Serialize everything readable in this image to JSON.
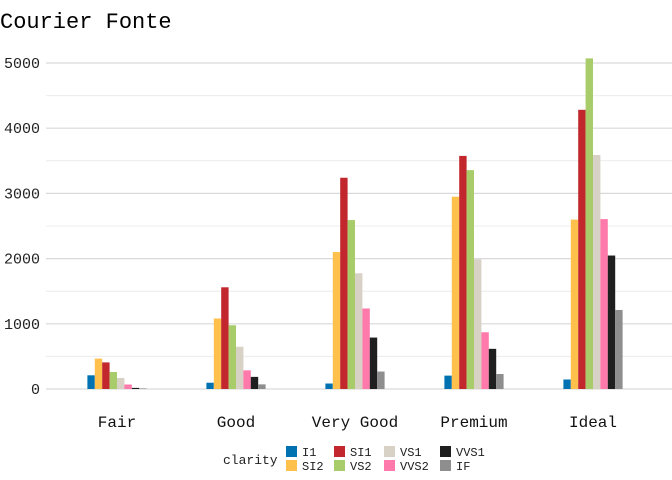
{
  "chart_data": {
    "type": "bar",
    "title": "Courier Fonte",
    "xlabel": "",
    "ylabel": "",
    "ylim": [
      0,
      5100
    ],
    "yticks": [
      0,
      1000,
      2000,
      3000,
      4000,
      5000
    ],
    "ytick_labels": [
      "0",
      "1000",
      "2000",
      "3000",
      "4000",
      "5000"
    ],
    "grid": true,
    "legend_placement": "bottom",
    "legend_title": "clarity",
    "categories": [
      "Fair",
      "Good",
      "Very Good",
      "Premium",
      "Ideal"
    ],
    "series": [
      {
        "name": "I1",
        "color": "#0072B2",
        "values": [
          210,
          96,
          84,
          205,
          146
        ]
      },
      {
        "name": "SI2",
        "color": "#FFC04C",
        "values": [
          466,
          1081,
          2100,
          2949,
          2598
        ]
      },
      {
        "name": "SI1",
        "color": "#C1272D",
        "values": [
          408,
          1560,
          3240,
          3575,
          4282
        ]
      },
      {
        "name": "VS2",
        "color": "#A8CC6A",
        "values": [
          261,
          978,
          2591,
          3357,
          5071
        ]
      },
      {
        "name": "VS1",
        "color": "#D8D1C6",
        "values": [
          170,
          648,
          1775,
          1989,
          3589
        ]
      },
      {
        "name": "VVS2",
        "color": "#FF7AAA",
        "values": [
          69,
          286,
          1235,
          870,
          2606
        ]
      },
      {
        "name": "VVS1",
        "color": "#1F1F1F",
        "values": [
          17,
          186,
          789,
          616,
          2047
        ]
      },
      {
        "name": "IF",
        "color": "#8E8E8E",
        "values": [
          9,
          71,
          268,
          230,
          1212
        ]
      }
    ]
  }
}
